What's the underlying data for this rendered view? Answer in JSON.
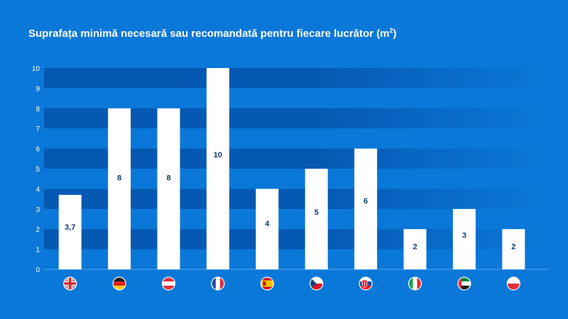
{
  "page": {
    "background_color": "#0a78d8",
    "title_main": "Suprafața minimă necesară sau recomandată pentru fiecare lucrător (m",
    "title_superscript": "2",
    "title_close": ")"
  },
  "chart_data": {
    "type": "bar",
    "title": "Suprafața minimă necesară sau recomandată pentru fiecare lucrător (m²)",
    "xlabel": "",
    "ylabel": "",
    "ylim": [
      0,
      10
    ],
    "y_ticks": [
      "0",
      "1",
      "2",
      "3",
      "4",
      "5",
      "6",
      "7",
      "8",
      "9",
      "10"
    ],
    "grid": "alternating horizontal bands",
    "legend": "none",
    "categories": [
      "flag-uk",
      "flag-germany",
      "flag-austria",
      "flag-france",
      "flag-spain",
      "flag-czech-republic",
      "flag-slovakia",
      "flag-italy",
      "flag-uae",
      "flag-poland"
    ],
    "values": [
      3.7,
      8,
      8,
      10,
      4,
      5,
      6,
      2,
      3,
      2
    ],
    "data_labels": [
      "3,7",
      "8",
      "8",
      "10",
      "4",
      "5",
      "6",
      "2",
      "3",
      "2"
    ],
    "colors": {
      "bar": "#ffffff",
      "label": "#0b3a6e",
      "band_dark": "#0659b3",
      "axis_text": "#ffffff"
    }
  }
}
